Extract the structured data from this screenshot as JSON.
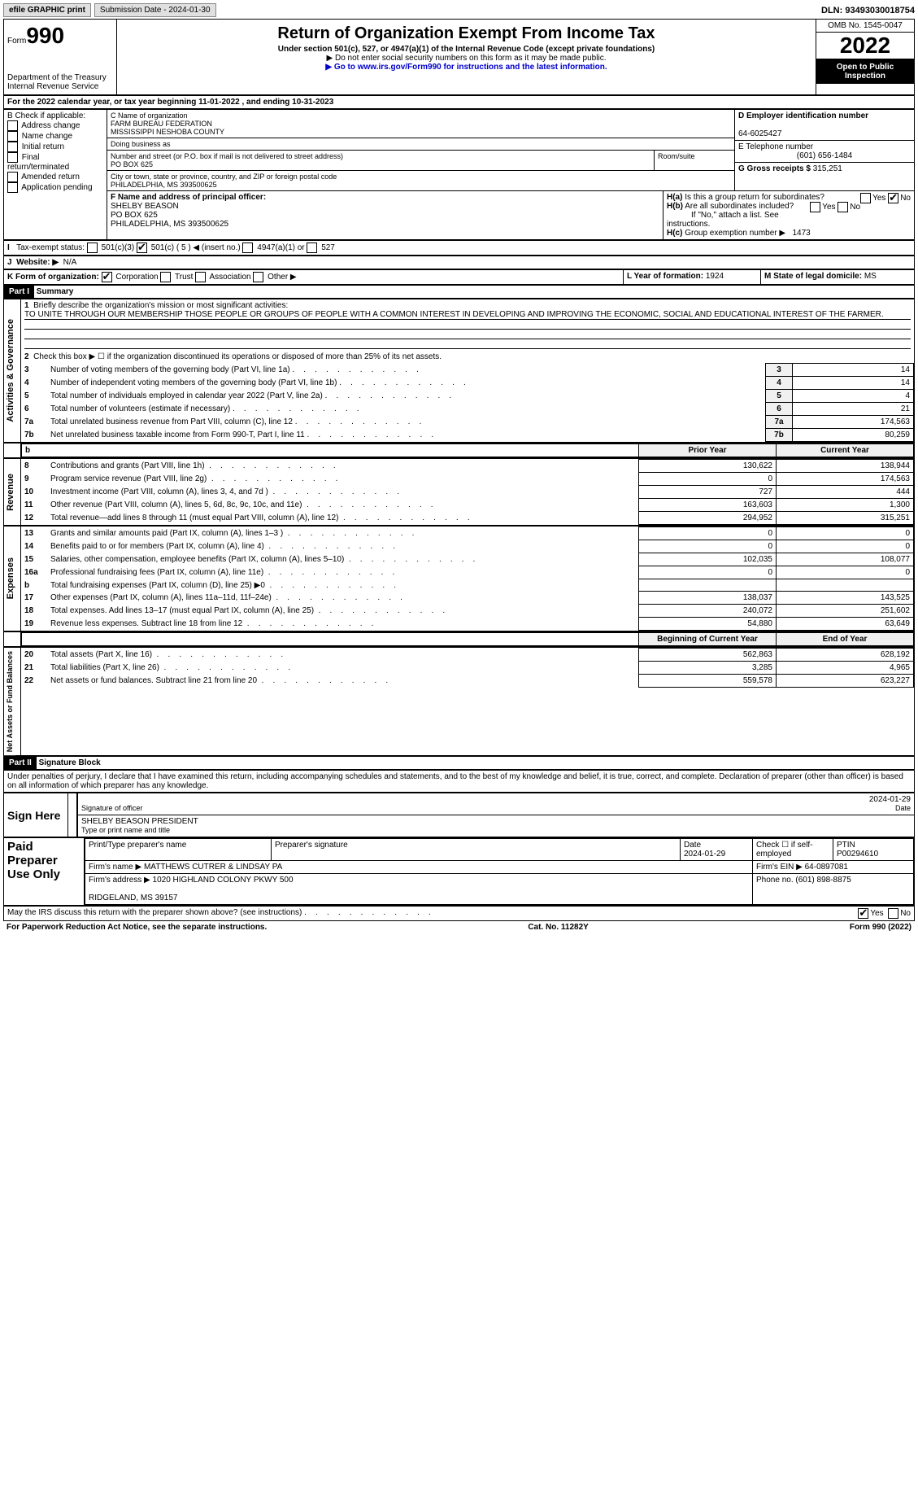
{
  "top": {
    "efile": "efile GRAPHIC print",
    "submission": "Submission Date - 2024-01-30",
    "dln": "DLN: 93493030018754"
  },
  "hdr": {
    "form": "Form",
    "num": "990",
    "dept": "Department of the Treasury\nInternal Revenue Service",
    "title": "Return of Organization Exempt From Income Tax",
    "sub": "Under section 501(c), 527, or 4947(a)(1) of the Internal Revenue Code (except private foundations)",
    "warn": "▶ Do not enter social security numbers on this form as it may be made public.",
    "link": "▶ Go to www.irs.gov/Form990 for instructions and the latest information.",
    "omb": "OMB No. 1545-0047",
    "year": "2022",
    "pub": "Open to Public Inspection"
  },
  "a": "For the 2022 calendar year, or tax year beginning 11-01-2022   , and ending 10-31-2023",
  "b": {
    "label": "B Check if applicable:",
    "items": [
      "Address change",
      "Name change",
      "Initial return",
      "Final return/terminated",
      "Amended return",
      "Application pending"
    ]
  },
  "c": {
    "namelbl": "C Name of organization",
    "name": "FARM BUREAU FEDERATION\nMISSISSIPPI NESHOBA COUNTY",
    "dba": "Doing business as",
    "addrlbl": "Number and street (or P.O. box if mail is not delivered to street address)",
    "addr": "PO BOX 625",
    "room": "Room/suite",
    "citylbl": "City or town, state or province, country, and ZIP or foreign postal code",
    "city": "PHILADELPHIA, MS  393500625"
  },
  "d": {
    "lbl": "D Employer identification number",
    "val": "64-6025427"
  },
  "e": {
    "lbl": "E Telephone number",
    "val": "(601) 656-1484"
  },
  "g": {
    "lbl": "G Gross receipts $",
    "val": "315,251"
  },
  "f": {
    "lbl": "F  Name and address of principal officer:",
    "name": "SHELBY BEASON",
    "addr": "PO BOX 625",
    "city": "PHILADELPHIA, MS  393500625"
  },
  "h": {
    "a": "Is this a group return for subordinates?",
    "b": "Are all subordinates included?",
    "bnote": "If \"No,\" attach a list. See instructions.",
    "c": "Group exemption number ▶",
    "cval": "1473"
  },
  "i": {
    "lbl": "Tax-exempt status:",
    "opts": [
      "501(c)(3)",
      "501(c) ( 5 ) ◀ (insert no.)",
      "4947(a)(1) or",
      "527"
    ]
  },
  "j": {
    "lbl": "Website: ▶",
    "val": "N/A"
  },
  "k": {
    "lbl": "K Form of organization:",
    "opts": [
      "Corporation",
      "Trust",
      "Association",
      "Other ▶"
    ]
  },
  "l": {
    "lbl": "L Year of formation:",
    "val": "1924"
  },
  "m": {
    "lbl": "M State of legal domicile:",
    "val": "MS"
  },
  "p1": {
    "title": "Summary",
    "side": "Activities & Governance",
    "l1": "Briefly describe the organization's mission or most significant activities:",
    "mission": "TO UNITE THROUGH OUR MEMBERSHIP THOSE PEOPLE OR GROUPS OF PEOPLE WITH A COMMON INTEREST IN DEVELOPING AND IMPROVING THE ECONOMIC, SOCIAL AND EDUCATIONAL INTEREST OF THE FARMER.",
    "l2": "Check this box ▶ ☐  if the organization discontinued its operations or disposed of more than 25% of its net assets.",
    "rows": [
      {
        "n": "3",
        "txt": "Number of voting members of the governing body (Part VI, line 1a)",
        "val": "14"
      },
      {
        "n": "4",
        "txt": "Number of independent voting members of the governing body (Part VI, line 1b)",
        "val": "14"
      },
      {
        "n": "5",
        "txt": "Total number of individuals employed in calendar year 2022 (Part V, line 2a)",
        "val": "4"
      },
      {
        "n": "6",
        "txt": "Total number of volunteers (estimate if necessary)",
        "val": "21"
      },
      {
        "n": "7a",
        "txt": "Total unrelated business revenue from Part VIII, column (C), line 12",
        "val": "174,563"
      },
      {
        "n": "7b",
        "txt": "Net unrelated business taxable income from Form 990-T, Part I, line 11",
        "val": "80,259"
      }
    ]
  },
  "fin": {
    "hdr": [
      "Prior Year",
      "Current Year"
    ],
    "rev": {
      "side": "Revenue",
      "rows": [
        {
          "n": "8",
          "txt": "Contributions and grants (Part VIII, line 1h)",
          "p": "130,622",
          "c": "138,944"
        },
        {
          "n": "9",
          "txt": "Program service revenue (Part VIII, line 2g)",
          "p": "0",
          "c": "174,563"
        },
        {
          "n": "10",
          "txt": "Investment income (Part VIII, column (A), lines 3, 4, and 7d )",
          "p": "727",
          "c": "444"
        },
        {
          "n": "11",
          "txt": "Other revenue (Part VIII, column (A), lines 5, 6d, 8c, 9c, 10c, and 11e)",
          "p": "163,603",
          "c": "1,300"
        },
        {
          "n": "12",
          "txt": "Total revenue—add lines 8 through 11 (must equal Part VIII, column (A), line 12)",
          "p": "294,952",
          "c": "315,251"
        }
      ]
    },
    "exp": {
      "side": "Expenses",
      "rows": [
        {
          "n": "13",
          "txt": "Grants and similar amounts paid (Part IX, column (A), lines 1–3 )",
          "p": "0",
          "c": "0"
        },
        {
          "n": "14",
          "txt": "Benefits paid to or for members (Part IX, column (A), line 4)",
          "p": "0",
          "c": "0"
        },
        {
          "n": "15",
          "txt": "Salaries, other compensation, employee benefits (Part IX, column (A), lines 5–10)",
          "p": "102,035",
          "c": "108,077"
        },
        {
          "n": "16a",
          "txt": "Professional fundraising fees (Part IX, column (A), line 11e)",
          "p": "0",
          "c": "0"
        },
        {
          "n": "b",
          "txt": "Total fundraising expenses (Part IX, column (D), line 25) ▶0",
          "p": "",
          "c": ""
        },
        {
          "n": "17",
          "txt": "Other expenses (Part IX, column (A), lines 11a–11d, 11f–24e)",
          "p": "138,037",
          "c": "143,525"
        },
        {
          "n": "18",
          "txt": "Total expenses. Add lines 13–17 (must equal Part IX, column (A), line 25)",
          "p": "240,072",
          "c": "251,602"
        },
        {
          "n": "19",
          "txt": "Revenue less expenses. Subtract line 18 from line 12",
          "p": "54,880",
          "c": "63,649"
        }
      ]
    },
    "net": {
      "side": "Net Assets or Fund Balances",
      "hdr": [
        "Beginning of Current Year",
        "End of Year"
      ],
      "rows": [
        {
          "n": "20",
          "txt": "Total assets (Part X, line 16)",
          "p": "562,863",
          "c": "628,192"
        },
        {
          "n": "21",
          "txt": "Total liabilities (Part X, line 26)",
          "p": "3,285",
          "c": "4,965"
        },
        {
          "n": "22",
          "txt": "Net assets or fund balances. Subtract line 21 from line 20",
          "p": "559,578",
          "c": "623,227"
        }
      ]
    }
  },
  "p2": {
    "title": "Signature Block",
    "decl": "Under penalties of perjury, I declare that I have examined this return, including accompanying schedules and statements, and to the best of my knowledge and belief, it is true, correct, and complete. Declaration of preparer (other than officer) is based on all information of which preparer has any knowledge.",
    "sign": {
      "lbl": "Sign Here",
      "sig": "Signature of officer",
      "date": "2024-01-29",
      "name": "SHELBY BEASON PRESIDENT",
      "sub": "Type or print name and title"
    },
    "paid": {
      "lbl": "Paid Preparer Use Only",
      "c1": "Print/Type preparer's name",
      "c2": "Preparer's signature",
      "c3": "Date",
      "c3v": "2024-01-29",
      "c4": "Check ☐ if self-employed",
      "c5": "PTIN",
      "c5v": "P00294610",
      "firm": "Firm's name      ▶",
      "firmv": "MATTHEWS CUTRER & LINDSAY PA",
      "ein": "Firm's EIN ▶",
      "einv": "64-0897081",
      "addr": "Firm's address ▶",
      "addrv": "1020 HIGHLAND COLONY PKWY 500\n\nRIDGELAND, MS  39157",
      "phone": "Phone no.",
      "phonev": "(601) 898-8875"
    },
    "discuss": "May the IRS discuss this return with the preparer shown above? (see instructions)"
  },
  "ftr": {
    "l": "For Paperwork Reduction Act Notice, see the separate instructions.",
    "c": "Cat. No. 11282Y",
    "r": "Form 990 (2022)"
  }
}
